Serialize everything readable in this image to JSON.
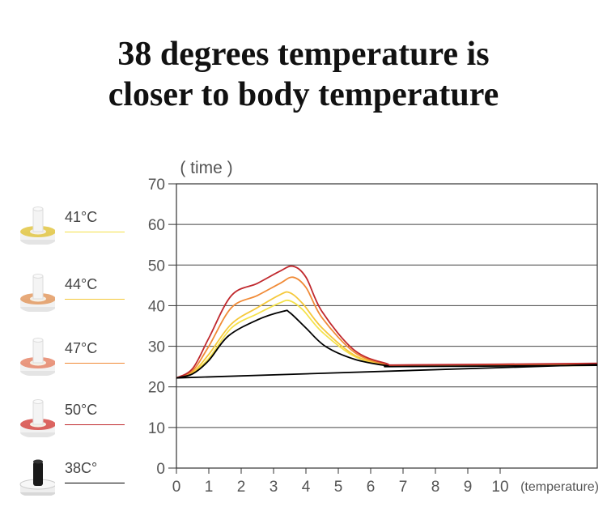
{
  "title": {
    "line1": "38 degrees temperature is",
    "line2": "closer to body temperature"
  },
  "legend": [
    {
      "label": "41°C",
      "color": "#f5e24a",
      "cup_color": "#e2c642"
    },
    {
      "label": "44°C",
      "color": "#f5c83a",
      "cup_color": "#e39a62"
    },
    {
      "label": "47°C",
      "color": "#f08a36",
      "cup_color": "#e6866a"
    },
    {
      "label": "50°C",
      "color": "#c0282d",
      "cup_color": "#d64a45"
    },
    {
      "label": "38C°",
      "color": "#000000",
      "cup_color": "#1a1a1a"
    }
  ],
  "chart_data": {
    "type": "line",
    "ylabel": "( time )",
    "xlabel": "(temperature)",
    "xlim": [
      0,
      13
    ],
    "ylim": [
      0,
      70
    ],
    "x_ticks": [
      0,
      1,
      2,
      3,
      4,
      5,
      6,
      7,
      8,
      9,
      10
    ],
    "y_ticks": [
      0,
      10,
      20,
      30,
      40,
      50,
      60,
      70
    ],
    "grid": "horizontal",
    "series": [
      {
        "name": "41°C",
        "color": "#f5e24a",
        "x": [
          0,
          0.5,
          1.0,
          1.7,
          2.5,
          3.2,
          3.5,
          3.9,
          4.5,
          5.5,
          6.5,
          7.0,
          13
        ],
        "y": [
          22.2,
          23.5,
          27,
          34.5,
          38,
          40.7,
          41.2,
          39,
          33.5,
          27.5,
          25.3,
          25.1,
          25.3
        ]
      },
      {
        "name": "44°C",
        "color": "#f5c83a",
        "x": [
          0,
          0.5,
          1.0,
          1.7,
          2.5,
          3.2,
          3.5,
          3.9,
          4.5,
          5.5,
          6.5,
          7.0,
          13
        ],
        "y": [
          22.2,
          23.6,
          28,
          35.5,
          39.5,
          42.7,
          43.2,
          40.5,
          34.5,
          27.8,
          25.4,
          25.2,
          25.3
        ]
      },
      {
        "name": "47°C",
        "color": "#f08a36",
        "x": [
          0,
          0.5,
          1.0,
          1.7,
          2.5,
          3.2,
          3.6,
          4.0,
          4.5,
          5.5,
          6.5,
          7.0,
          13
        ],
        "y": [
          22.2,
          24,
          30,
          39.5,
          42.5,
          45.5,
          47,
          44.5,
          37,
          28.5,
          25.5,
          25.3,
          25.6
        ]
      },
      {
        "name": "50°C",
        "color": "#c0282d",
        "x": [
          0,
          0.5,
          1.0,
          1.7,
          2.5,
          3.2,
          3.6,
          4.0,
          4.5,
          5.5,
          6.5,
          7.0,
          13
        ],
        "y": [
          22.2,
          24.5,
          32,
          42.5,
          45.5,
          48.5,
          49.7,
          47,
          38.5,
          29,
          25.7,
          25.4,
          25.8
        ]
      },
      {
        "name": "38C°",
        "color": "#000000",
        "x": [
          0,
          0.5,
          1.0,
          1.6,
          2.5,
          3.3,
          3.5,
          4.0,
          4.6,
          5.5,
          6.5,
          7.0,
          13
        ],
        "y": [
          22.2,
          23.2,
          26.5,
          32.5,
          36.5,
          38.6,
          38.3,
          34.5,
          30,
          26.8,
          25.2,
          25.0,
          25.3
        ]
      },
      {
        "name": "baseline",
        "color": "#000000",
        "x": [
          0,
          13
        ],
        "y": [
          22.2,
          25.5
        ]
      }
    ]
  }
}
